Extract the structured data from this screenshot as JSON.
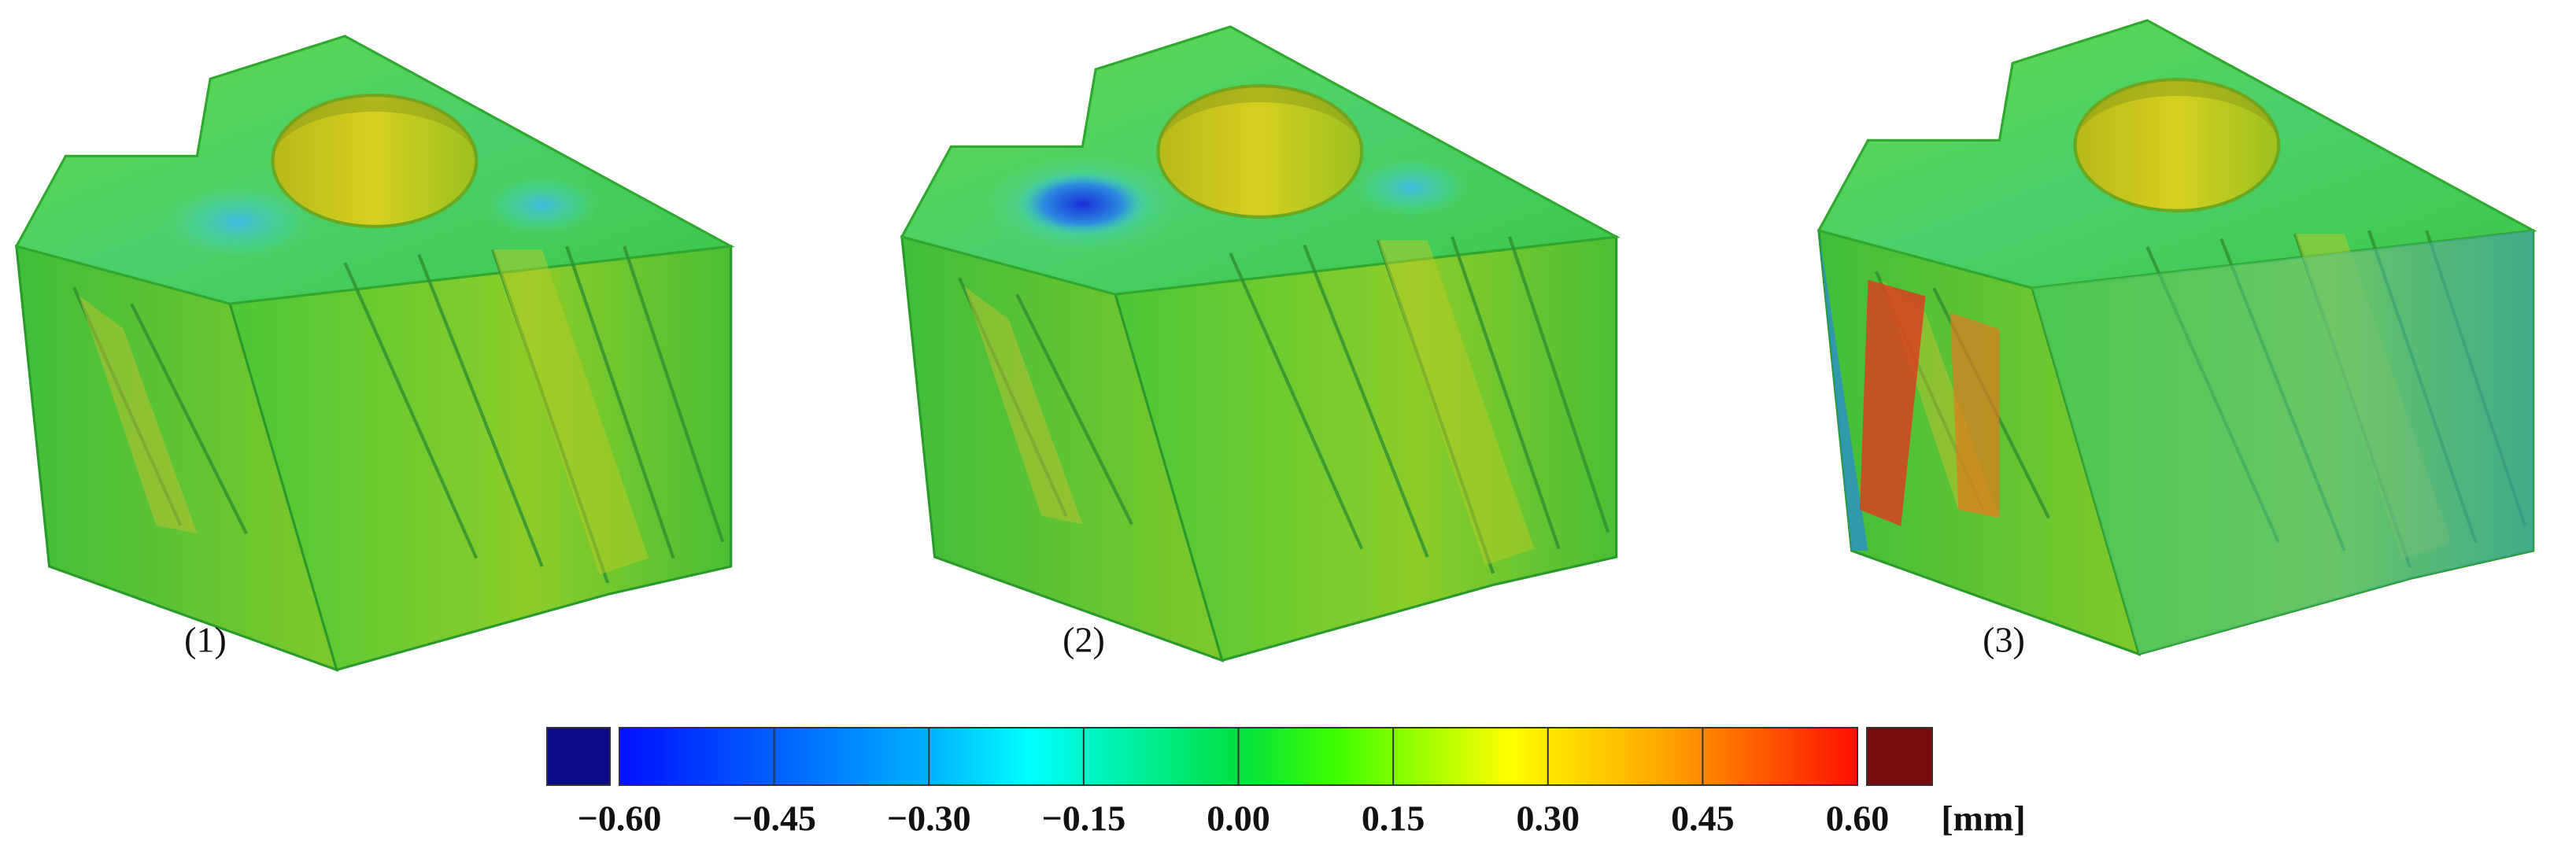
{
  "panels": {
    "labels": [
      "(1)",
      "(2)",
      "(3)"
    ]
  },
  "colorbar": {
    "ticks": [
      "−0.60",
      "−0.45",
      "−0.30",
      "−0.15",
      "0.00",
      "0.15",
      "0.30",
      "0.45",
      "0.60"
    ],
    "unit": "[mm]"
  }
}
